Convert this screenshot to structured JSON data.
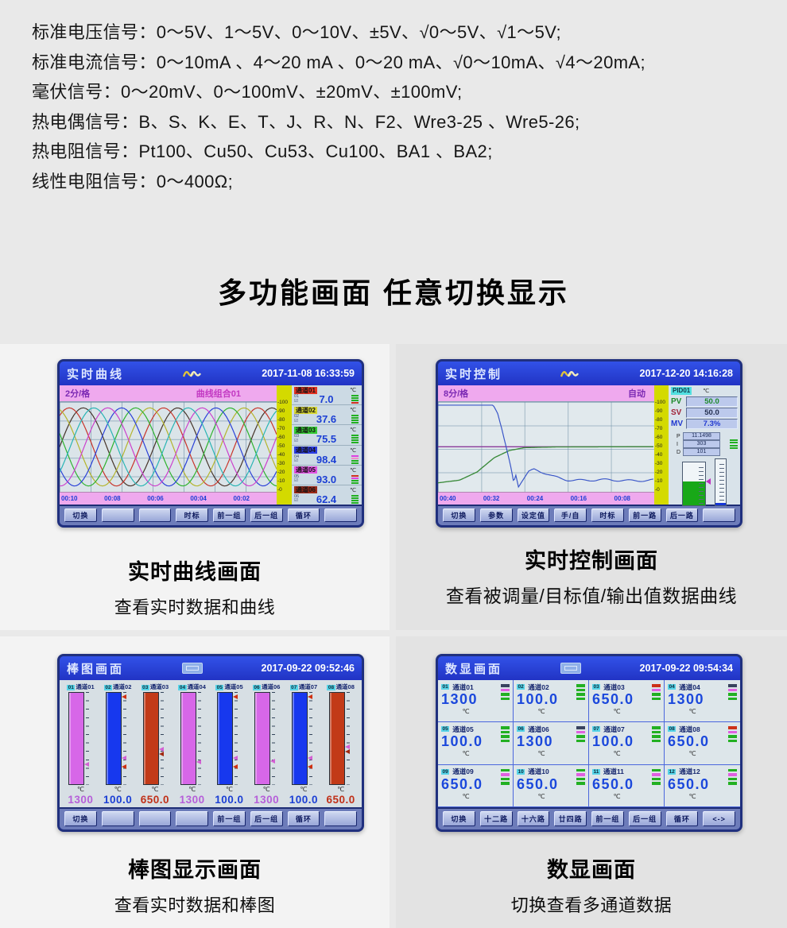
{
  "specs": {
    "lines": [
      "标准电压信号：0～5V、1～5V、0～10V、±5V、√0～5V、√1～5V;",
      "标准电流信号：0～10mA 、4～20 mA 、0～20 mA、√0～10mA、√4～20mA;",
      "毫伏信号：0～20mV、0～100mV、±20mV、±100mV;",
      "热电偶信号：B、S、K、E、T、J、R、N、F2、Wre3-25 、Wre5-26;",
      "热电阻信号：Pt100、Cu50、Cu53、Cu100、BA1 、BA2;",
      "线性电阻信号：0～400Ω;"
    ]
  },
  "section_title": "多功能画面  任意切换显示",
  "panels": {
    "curve": {
      "title": "实时曲线",
      "datetime": "2017-11-08 16:33:59",
      "interval": "2分/格",
      "group": "曲线组合01",
      "x_ticks": [
        "00:10",
        "00:08",
        "00:06",
        "00:04",
        "00:02"
      ],
      "y_ticks": [
        "100",
        "90",
        "80",
        "70",
        "60",
        "50",
        "40",
        "30",
        "20",
        "10",
        "0"
      ],
      "sine": {
        "colors": [
          "#46342a",
          "#c8342a",
          "#b4b42c",
          "#2eb22e",
          "#2a40d8",
          "#cc40cc",
          "#28b4b4"
        ],
        "cycles": 2.3,
        "amplitude": 0.87
      },
      "channels": [
        {
          "num": "01",
          "name": "通道01",
          "unit": "℃",
          "value": "7.0",
          "color": "#e23222",
          "bars": [
            "#22b022",
            "#22b022",
            "#22b022",
            "#d03020"
          ]
        },
        {
          "num": "02",
          "name": "通道02",
          "unit": "℃",
          "value": "37.6",
          "color": "#d8d832",
          "bars": [
            "#22b022",
            "#22b022",
            "#22b022",
            "#22b022"
          ]
        },
        {
          "num": "03",
          "name": "通道03",
          "unit": "℃",
          "value": "75.5",
          "color": "#34cc34",
          "bars": [
            "#22b022",
            "#22b022",
            "#22b022",
            "#22b022"
          ]
        },
        {
          "num": "04",
          "name": "通道04",
          "unit": "℃",
          "value": "98.4",
          "color": "#2a3ce2",
          "bars": [
            "#e040e0",
            "#f090c8",
            "#22b022",
            "#22b022"
          ]
        },
        {
          "num": "05",
          "name": "通道05",
          "unit": "℃",
          "value": "93.0",
          "color": "#e352e3",
          "bars": [
            "#d03020",
            "#e040e0",
            "#22b022",
            "#22b022"
          ]
        },
        {
          "num": "06",
          "name": "通道06",
          "unit": "℃",
          "value": "62.4",
          "color": "#9c2a18",
          "bars": [
            "#22b022",
            "#22b022",
            "#22b022",
            "#22b022"
          ]
        }
      ],
      "buttons": [
        "切换",
        "",
        "",
        "时标",
        "前一组",
        "后一组",
        "循环",
        ""
      ],
      "caption": {
        "title": "实时曲线画面",
        "sub": "查看实时数据和曲线"
      }
    },
    "control": {
      "title": "实时控制",
      "datetime": "2017-12-20 14:16:28",
      "interval": "8分/格",
      "mode": "自动",
      "x_ticks": [
        "00:40",
        "00:32",
        "00:24",
        "00:16",
        "00:08"
      ],
      "y_ticks": [
        "100",
        "90",
        "80",
        "70",
        "60",
        "50",
        "40",
        "30",
        "20",
        "10",
        "0"
      ],
      "curves": [
        {
          "name": "sv-line",
          "color": "#8a3a9a",
          "width": 1.4,
          "anchors": [
            [
              0,
              0.498
            ],
            [
              1,
              0.498
            ]
          ]
        },
        {
          "name": "pv-curve",
          "color": "#3a8a3a",
          "width": 1.4,
          "anchors": [
            [
              0,
              0.9
            ],
            [
              0.1,
              0.87
            ],
            [
              0.18,
              0.78
            ],
            [
              0.26,
              0.62
            ],
            [
              0.33,
              0.54
            ],
            [
              0.4,
              0.508
            ],
            [
              0.55,
              0.5
            ],
            [
              1,
              0.497
            ]
          ]
        },
        {
          "name": "mv-curve",
          "color": "#3a56c8",
          "width": 1.2,
          "jitter": true,
          "anchors": [
            [
              0,
              0.035
            ],
            [
              0.255,
              0.035
            ],
            [
              0.275,
              0.12
            ],
            [
              0.295,
              0.3
            ],
            [
              0.31,
              0.45
            ],
            [
              0.325,
              0.6
            ],
            [
              0.34,
              0.76
            ],
            [
              0.35,
              0.9
            ],
            [
              0.36,
              0.8
            ],
            [
              0.372,
              0.93
            ],
            [
              0.39,
              0.87
            ],
            [
              0.42,
              0.78
            ],
            [
              0.445,
              0.755
            ],
            [
              0.48,
              0.785
            ],
            [
              0.53,
              0.83
            ],
            [
              0.6,
              0.862
            ],
            [
              0.72,
              0.875
            ],
            [
              0.86,
              0.868
            ],
            [
              1,
              0.875
            ]
          ]
        }
      ],
      "pid": {
        "label": "PID01",
        "unit": "℃",
        "rows": [
          {
            "k": "PV",
            "v": "50.0",
            "kc": "#1d8a2a",
            "vc": "#1d8a2a"
          },
          {
            "k": "SV",
            "v": "50.0",
            "kc": "#a02438",
            "vc": "#243050"
          },
          {
            "k": "MV",
            "v": "7.3%",
            "kc": "#2038d0",
            "vc": "#2038d0"
          }
        ],
        "params": [
          {
            "k": "P",
            "v": "11.1498"
          },
          {
            "k": "I",
            "v": "303"
          },
          {
            "k": "D",
            "v": "101"
          }
        ],
        "gauges": [
          {
            "fill": 55,
            "color": "#18a818"
          },
          {
            "fill": 6,
            "color": "#1535d8"
          }
        ]
      },
      "buttons": [
        "切换",
        "参数",
        "设定值",
        "手/自",
        "时标",
        "前一路",
        "后一路",
        ""
      ],
      "caption": {
        "title": "实时控制画面",
        "sub": "查看被调量/目标值/输出值数据曲线"
      }
    },
    "bar": {
      "title": "棒图画面",
      "datetime": "2017-09-22 09:52:46",
      "unit": "℃",
      "bars": [
        {
          "num": "01",
          "name": "通道01",
          "value": "1300",
          "color": "#d767e8",
          "valColor": "#b65fd9",
          "markers": [
            {
              "p": 0.77,
              "c": "#d35fd3"
            }
          ]
        },
        {
          "num": "02",
          "name": "通道02",
          "value": "100.0",
          "color": "#1738ee",
          "valColor": "#1b3fd4",
          "markers": [
            {
              "p": 0.06,
              "c": "#d03010"
            },
            {
              "p": 0.71,
              "c": "#d35fd3"
            },
            {
              "p": 0.8,
              "c": "#d03010"
            }
          ]
        },
        {
          "num": "03",
          "name": "通道03",
          "value": "650.0",
          "color": "#c23a18",
          "valColor": "#c03018",
          "markers": [
            {
              "p": 0.61,
              "c": "#d35fd3"
            },
            {
              "p": 0.66,
              "c": "#a02810"
            }
          ]
        },
        {
          "num": "04",
          "name": "通道04",
          "value": "1300",
          "color": "#d767e8",
          "valColor": "#b65fd9",
          "markers": [
            {
              "p": 0.75,
              "c": "#d35fd3"
            }
          ]
        },
        {
          "num": "05",
          "name": "通道05",
          "value": "100.0",
          "color": "#1738ee",
          "valColor": "#1b3fd4",
          "markers": [
            {
              "p": 0.06,
              "c": "#d03010"
            },
            {
              "p": 0.71,
              "c": "#d35fd3"
            },
            {
              "p": 0.8,
              "c": "#d03010"
            }
          ]
        },
        {
          "num": "06",
          "name": "通道06",
          "value": "1300",
          "color": "#d767e8",
          "valColor": "#b65fd9",
          "markers": [
            {
              "p": 0.74,
              "c": "#d35fd3"
            }
          ]
        },
        {
          "num": "07",
          "name": "通道07",
          "value": "100.0",
          "color": "#1738ee",
          "valColor": "#1b3fd4",
          "markers": [
            {
              "p": 0.06,
              "c": "#d03010"
            },
            {
              "p": 0.71,
              "c": "#d35fd3"
            },
            {
              "p": 0.8,
              "c": "#d03010"
            }
          ]
        },
        {
          "num": "08",
          "name": "通道08",
          "value": "650.0",
          "color": "#c23a18",
          "valColor": "#c03018",
          "markers": [
            {
              "p": 0.59,
              "c": "#d35fd3"
            },
            {
              "p": 0.64,
              "c": "#a02810"
            }
          ]
        }
      ],
      "buttons": [
        "切换",
        "",
        "",
        "",
        "前一组",
        "后一组",
        "循环",
        ""
      ],
      "caption": {
        "title": "棒图显示画面",
        "sub": "查看实时数据和棒图"
      }
    },
    "digital": {
      "title": "数显画面",
      "datetime": "2017-09-22 09:54:34",
      "unit": "℃",
      "cells": [
        {
          "num": "01",
          "name": "通道01",
          "value": "1300",
          "bars": [
            "#38425e",
            "#e060e0",
            "#22b022",
            "#22b022"
          ]
        },
        {
          "num": "02",
          "name": "通道02",
          "value": "100.0",
          "bars": [
            "#22b022",
            "#22b022",
            "#22b022",
            "#22b022"
          ]
        },
        {
          "num": "03",
          "name": "通道03",
          "value": "650.0",
          "bars": [
            "#cc3018",
            "#e060e0",
            "#22b022",
            "#22b022"
          ]
        },
        {
          "num": "04",
          "name": "通道04",
          "value": "1300",
          "bars": [
            "#38425e",
            "#e060e0",
            "#22b022",
            "#22b022"
          ]
        },
        {
          "num": "05",
          "name": "通道05",
          "value": "100.0",
          "bars": [
            "#22b022",
            "#22b022",
            "#22b022",
            "#22b022"
          ]
        },
        {
          "num": "06",
          "name": "通道06",
          "value": "1300",
          "bars": [
            "#38425e",
            "#e060e0",
            "#22b022",
            "#22b022"
          ]
        },
        {
          "num": "07",
          "name": "通道07",
          "value": "100.0",
          "bars": [
            "#22b022",
            "#22b022",
            "#22b022",
            "#22b022"
          ]
        },
        {
          "num": "08",
          "name": "通道08",
          "value": "650.0",
          "bars": [
            "#cc3018",
            "#e060e0",
            "#22b022",
            "#22b022"
          ]
        },
        {
          "num": "09",
          "name": "通道09",
          "value": "650.0",
          "bars": [
            "#22b022",
            "#e060e0",
            "#22b022",
            "#22b022"
          ]
        },
        {
          "num": "10",
          "name": "通道10",
          "value": "650.0",
          "bars": [
            "#22b022",
            "#e060e0",
            "#22b022",
            "#22b022"
          ]
        },
        {
          "num": "11",
          "name": "通道11",
          "value": "650.0",
          "bars": [
            "#22b022",
            "#e060e0",
            "#22b022",
            "#22b022"
          ]
        },
        {
          "num": "12",
          "name": "通道12",
          "value": "650.0",
          "bars": [
            "#22b022",
            "#e060e0",
            "#22b022",
            "#22b022"
          ]
        }
      ],
      "buttons": [
        "切换",
        "十二路",
        "十六路",
        "廿四路",
        "前一组",
        "后一组",
        "循环",
        "<->"
      ],
      "caption": {
        "title": "数显画面",
        "sub": "切换查看多通道数据"
      }
    }
  }
}
